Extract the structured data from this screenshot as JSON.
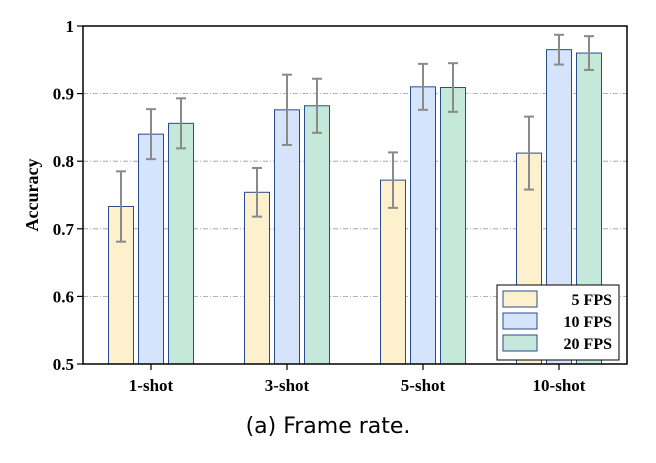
{
  "chart_data": {
    "type": "bar",
    "categories": [
      "1-shot",
      "3-shot",
      "5-shot",
      "10-shot"
    ],
    "series": [
      {
        "name": "5 FPS",
        "values": [
          0.733,
          0.754,
          0.772,
          0.812
        ],
        "errors": [
          0.052,
          0.036,
          0.041,
          0.054
        ],
        "color": "#fdf0cc"
      },
      {
        "name": "10 FPS",
        "values": [
          0.84,
          0.876,
          0.91,
          0.965
        ],
        "errors": [
          0.037,
          0.052,
          0.034,
          0.022
        ],
        "color": "#d6e4fb"
      },
      {
        "name": "20 FPS",
        "values": [
          0.856,
          0.882,
          0.909,
          0.96
        ],
        "errors": [
          0.037,
          0.04,
          0.036,
          0.025
        ],
        "color": "#c4e8da"
      }
    ],
    "ylabel": "Accuracy",
    "xlabel": "",
    "ylim": [
      0.5,
      1.0
    ],
    "yticks": [
      "0.5",
      "0.6",
      "0.7",
      "0.8",
      "0.9",
      "1"
    ],
    "grid": "horizontal dash-dot",
    "legend_position": "bottom-right",
    "edge_color": "#2b4a8c",
    "error_color": "#8a8a8a"
  },
  "caption": "(a) Frame rate."
}
